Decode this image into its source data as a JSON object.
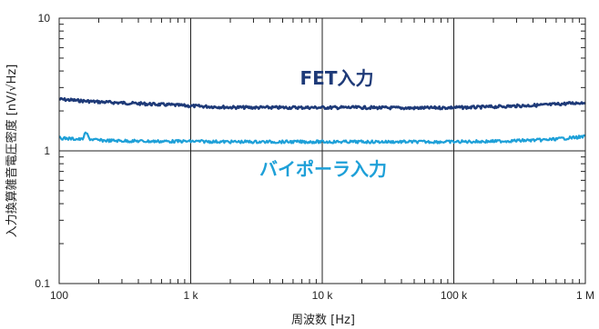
{
  "chart_data": {
    "type": "line",
    "xlabel": "周波数 [Hz]",
    "ylabel": "入力換算雑音電圧密度 [nV/√Hz]",
    "x_scale": "log",
    "y_scale": "log",
    "xlim": [
      100,
      1000000
    ],
    "ylim": [
      0.1,
      10
    ],
    "x_ticks": [
      100,
      1000,
      10000,
      100000,
      1000000
    ],
    "x_tick_labels": [
      "100",
      "1 k",
      "10 k",
      "100 k",
      "1 M"
    ],
    "y_ticks": [
      0.1,
      1,
      10
    ],
    "y_tick_labels": [
      "0.1",
      "1",
      "10"
    ],
    "grid": true,
    "series": [
      {
        "name": "FET入力",
        "color": "#1e3a78",
        "x": [
          100,
          150,
          200,
          300,
          500,
          700,
          1000,
          1500,
          2000,
          3000,
          5000,
          10000,
          20000,
          30000,
          50000,
          100000,
          150000,
          200000,
          300000,
          500000,
          1000000
        ],
        "y": [
          2.45,
          2.38,
          2.34,
          2.3,
          2.25,
          2.22,
          2.18,
          2.15,
          2.13,
          2.12,
          2.12,
          2.12,
          2.12,
          2.11,
          2.1,
          2.12,
          2.13,
          2.15,
          2.18,
          2.22,
          2.32
        ]
      },
      {
        "name": "バイポーラ入力",
        "color": "#1ea0d8",
        "x": [
          100,
          150,
          160,
          170,
          200,
          300,
          500,
          1000,
          2000,
          5000,
          10000,
          20000,
          50000,
          100000,
          200000,
          500000,
          1000000
        ],
        "y": [
          1.25,
          1.22,
          1.38,
          1.23,
          1.2,
          1.19,
          1.18,
          1.18,
          1.17,
          1.17,
          1.17,
          1.17,
          1.17,
          1.17,
          1.18,
          1.21,
          1.28
        ]
      }
    ]
  }
}
